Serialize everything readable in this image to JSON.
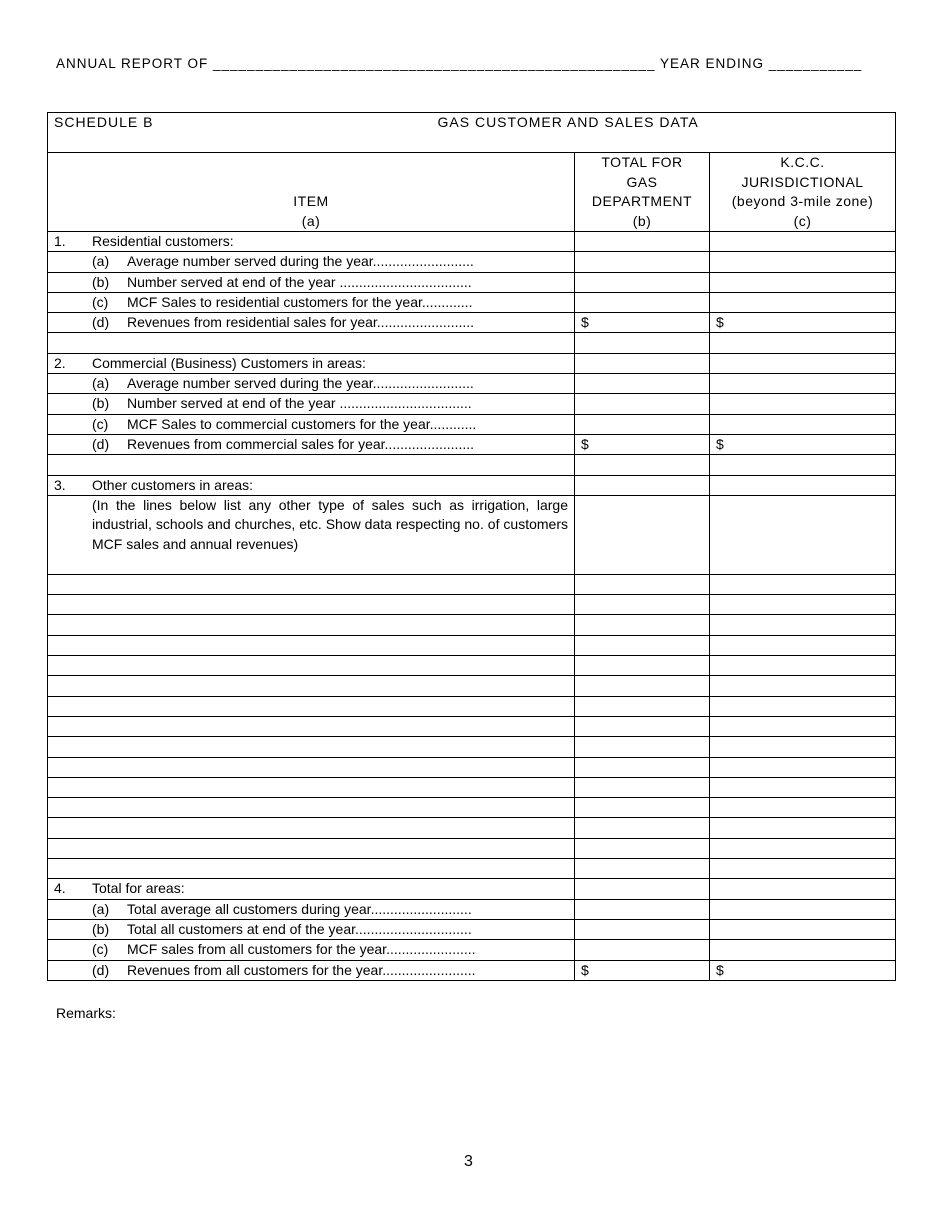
{
  "header": {
    "text": "ANNUAL REPORT OF ____________________________________________________ YEAR ENDING ___________"
  },
  "schedule": {
    "label": "SCHEDULE B",
    "title": "GAS CUSTOMER AND SALES DATA"
  },
  "columns": {
    "a": [
      "ITEM",
      "(a)"
    ],
    "b": [
      "TOTAL FOR",
      "GAS",
      "DEPARTMENT",
      "(b)"
    ],
    "c": [
      "K.C.C.",
      "JURISDICTIONAL",
      "(beyond 3-mile zone)",
      "(c)"
    ]
  },
  "rows": [
    {
      "num": "1.",
      "text": "Residential customers:"
    },
    {
      "letter": "(a)",
      "text": "Average number served during the year.........................."
    },
    {
      "letter": "(b)",
      "text": "Number served at end of the year .................................."
    },
    {
      "letter": "(c)",
      "text": "MCF Sales to residential customers for the year............."
    },
    {
      "letter": "(d)",
      "text": "Revenues from residential sales for year.........................",
      "b": "$",
      "c": "$"
    },
    {},
    {
      "num": "2.",
      "text": "Commercial (Business) Customers in areas:"
    },
    {
      "letter": "(a)",
      "text": "Average number served during the year.........................."
    },
    {
      "letter": "(b)",
      "text": "Number served at end of the year .................................."
    },
    {
      "letter": "(c)",
      "text": "MCF Sales to commercial customers for the year............"
    },
    {
      "letter": "(d)",
      "text": "Revenues from commercial sales for year.......................",
      "b": "$",
      "c": "$"
    },
    {},
    {
      "num": "3.",
      "text": "Other customers in areas:"
    },
    {
      "para": "(In the lines below list any other type of sales such as irrigation, large industrial, schools and churches, etc.  Show data respecting no. of customers MCF sales and annual revenues)"
    },
    {},
    {},
    {},
    {},
    {},
    {},
    {},
    {},
    {},
    {},
    {},
    {},
    {},
    {},
    {},
    {
      "num": "4.",
      "text": "Total for areas:"
    },
    {
      "letter": "(a)",
      "text": "Total average all customers during year.........................."
    },
    {
      "letter": "(b)",
      "text": "Total all customers at end of the year.............................."
    },
    {
      "letter": "(c)",
      "text": "MCF sales from all customers for the year......................."
    },
    {
      "letter": "(d)",
      "text": "Revenues from all customers for the year........................",
      "b": "$",
      "c": "$"
    }
  ],
  "remarks": "Remarks:",
  "page_number": "3"
}
